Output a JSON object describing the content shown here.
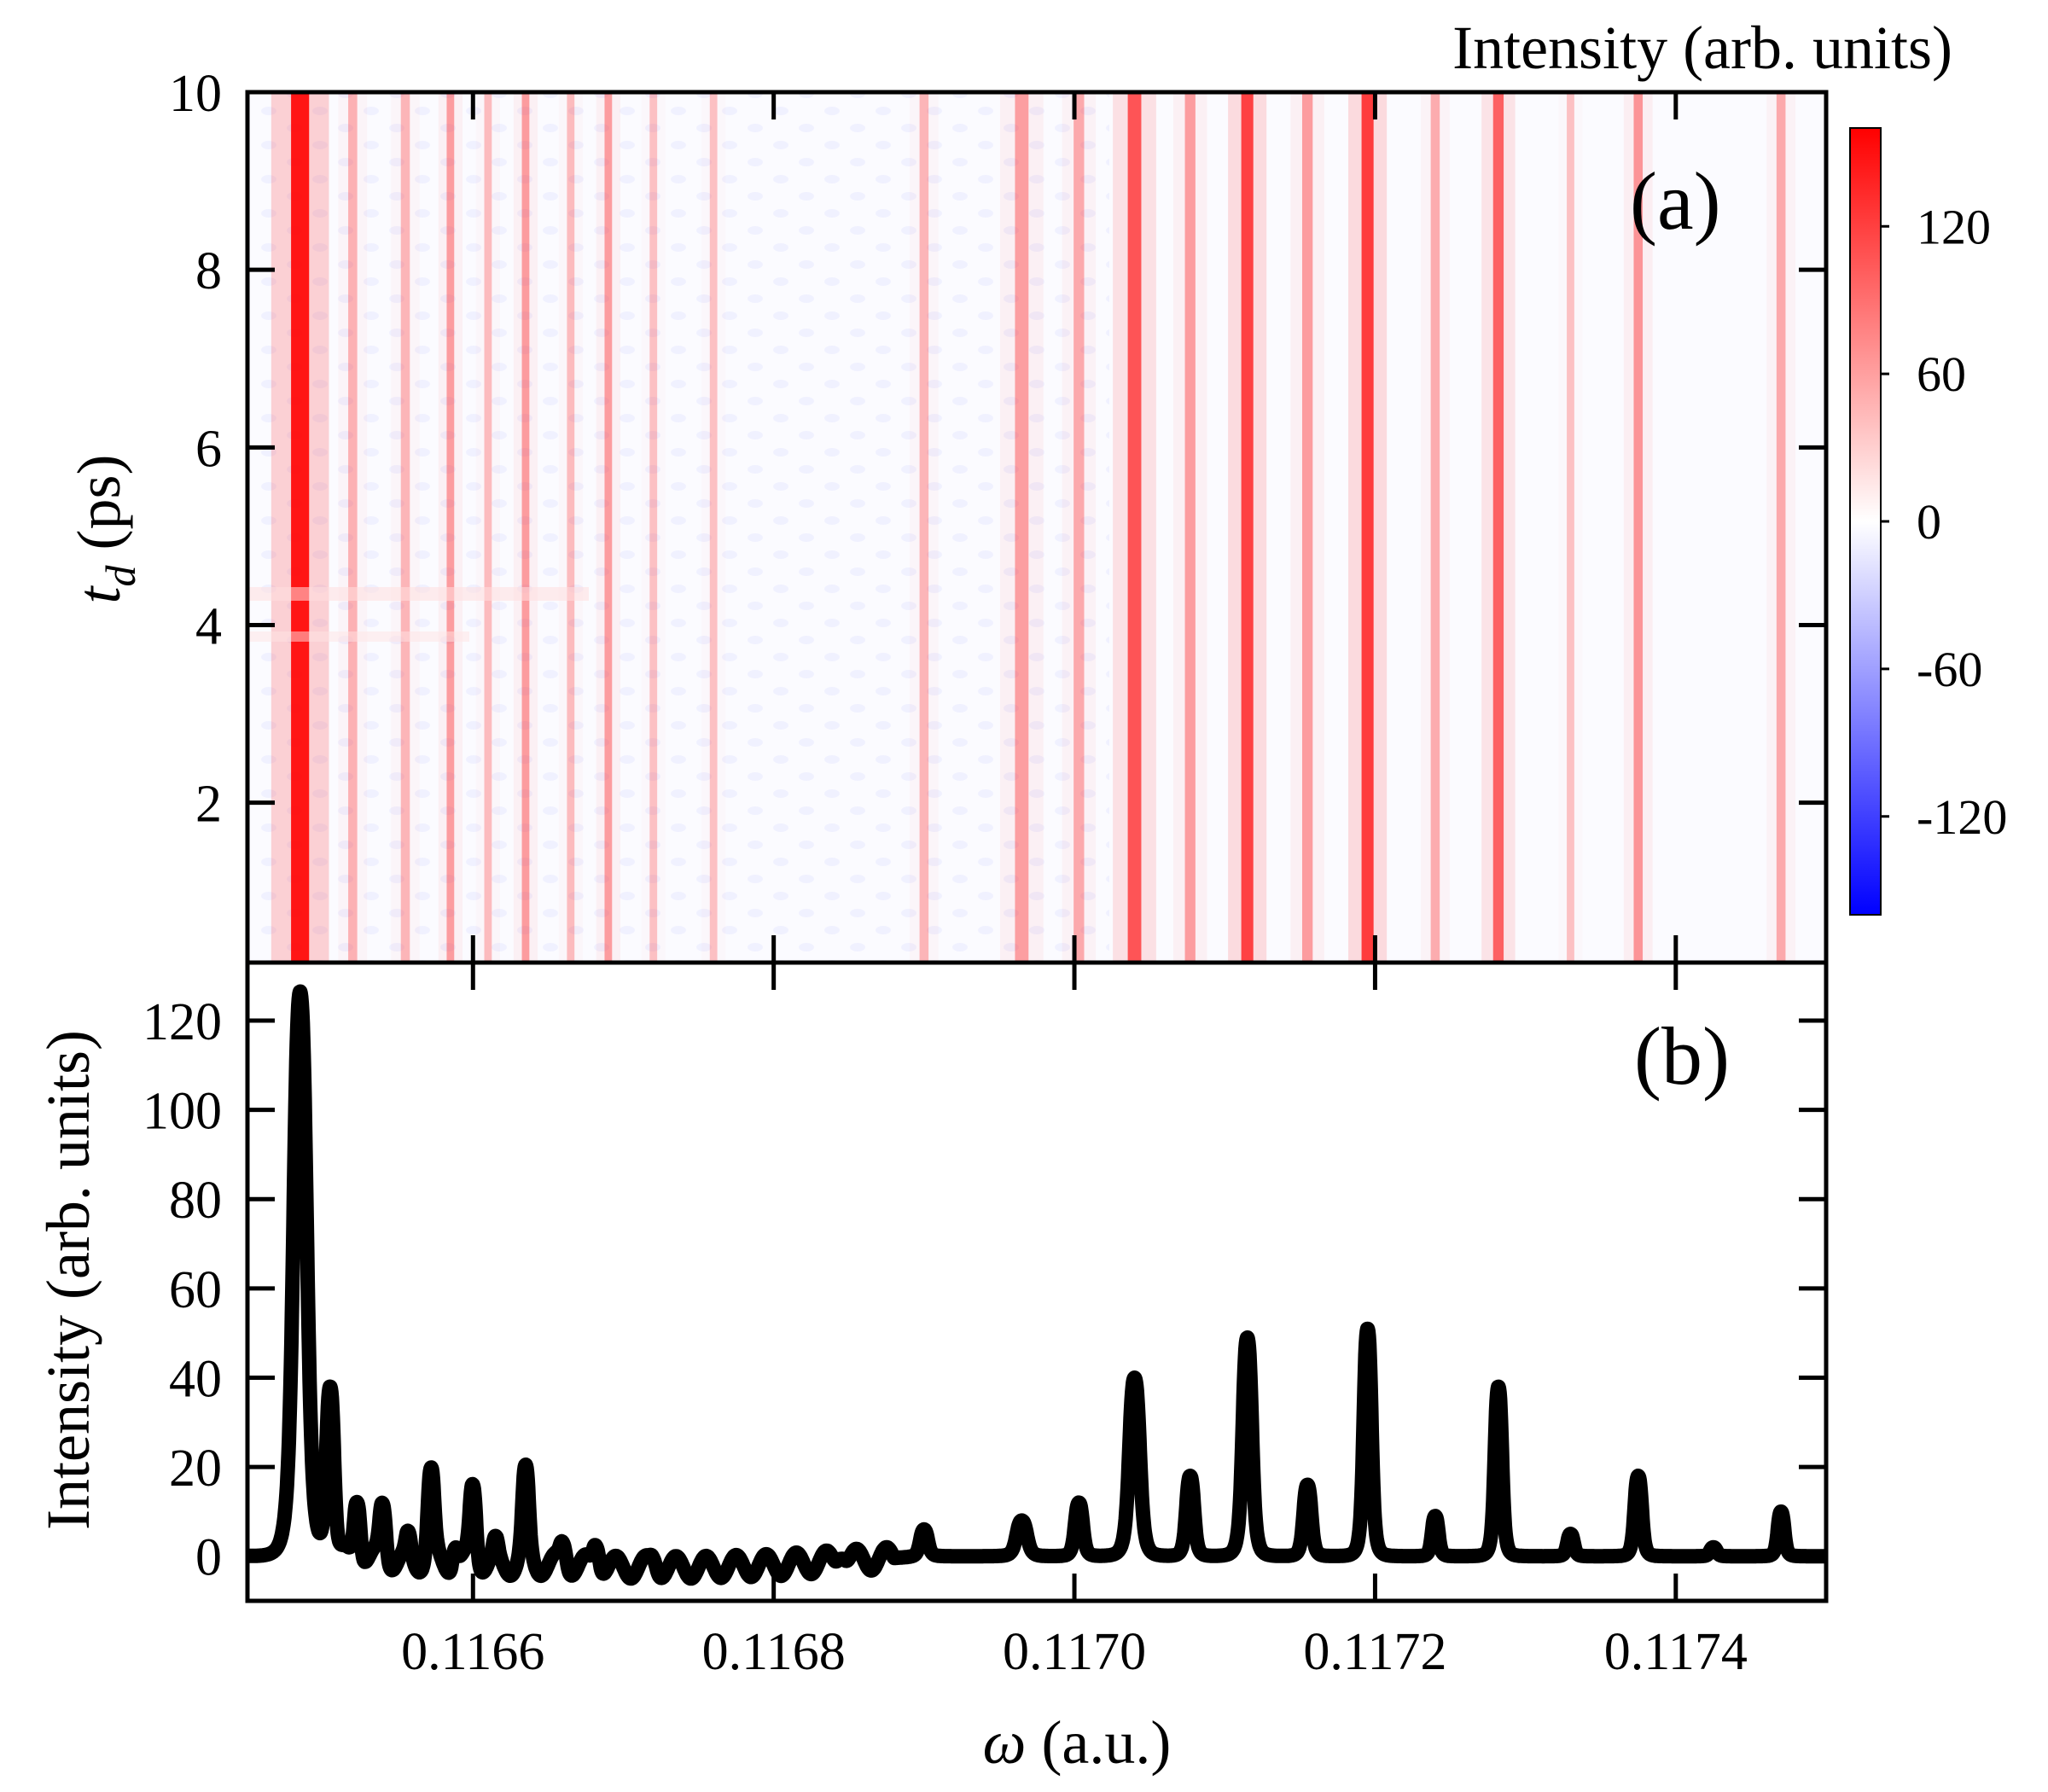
{
  "chart_data": [
    {
      "id": "panel-a",
      "type": "heatmap",
      "panel_label": "(a)",
      "ylabel_symbol": "t",
      "ylabel_subscript": "d",
      "ylabel_unit": " (ps)",
      "xlim": [
        0.11645,
        0.1175
      ],
      "ylim": [
        0.2,
        10.0
      ],
      "y_ticks": [
        2,
        4,
        6,
        8,
        10
      ],
      "y_tick_labels": [
        "2",
        "4",
        "6",
        "8",
        "10"
      ],
      "x_ticks": [
        0.1166,
        0.1168,
        0.117,
        0.1172,
        0.1174
      ],
      "colorbar": {
        "title": "Intensity (arb. units)",
        "range": [
          -160,
          160
        ],
        "ticks": [
          120,
          60,
          0,
          -60,
          -120
        ],
        "tick_labels": [
          "120",
          "60",
          "0",
          "-60",
          "-120"
        ],
        "colors": {
          "high": "#ff0000",
          "mid": "#ffffff",
          "low": "#0000ff"
        }
      },
      "lines": [
        {
          "x": 0.116485,
          "level": 150,
          "width": 6e-06
        },
        {
          "x": 0.11652,
          "level": 25,
          "width": 3e-06
        },
        {
          "x": 0.116555,
          "level": 22,
          "width": 3e-06
        },
        {
          "x": 0.116585,
          "level": 40,
          "width": 2.5e-06
        },
        {
          "x": 0.11661,
          "level": 18,
          "width": 2.5e-06
        },
        {
          "x": 0.116635,
          "level": 40,
          "width": 2.5e-06
        },
        {
          "x": 0.116665,
          "level": 18,
          "width": 2.5e-06
        },
        {
          "x": 0.11669,
          "level": 40,
          "width": 2.5e-06
        },
        {
          "x": 0.11672,
          "level": 15,
          "width": 2.5e-06
        },
        {
          "x": 0.11676,
          "level": 15,
          "width": 2.5e-06
        },
        {
          "x": 0.1169,
          "level": 22,
          "width": 3e-06
        },
        {
          "x": 0.116965,
          "level": 38,
          "width": 4.5e-06
        },
        {
          "x": 0.117003,
          "level": 30,
          "width": 3.5e-06
        },
        {
          "x": 0.11704,
          "level": 95,
          "width": 4.5e-06
        },
        {
          "x": 0.117077,
          "level": 40,
          "width": 3.5e-06
        },
        {
          "x": 0.117115,
          "level": 110,
          "width": 4e-06
        },
        {
          "x": 0.117155,
          "level": 40,
          "width": 3.5e-06
        },
        {
          "x": 0.117195,
          "level": 115,
          "width": 4e-06
        },
        {
          "x": 0.11724,
          "level": 28,
          "width": 3e-06
        },
        {
          "x": 0.117282,
          "level": 85,
          "width": 3.5e-06
        },
        {
          "x": 0.11733,
          "level": 15,
          "width": 2.5e-06
        },
        {
          "x": 0.117375,
          "level": 45,
          "width": 3e-06
        },
        {
          "x": 0.11747,
          "level": 30,
          "width": 3e-06
        }
      ]
    },
    {
      "id": "panel-b",
      "type": "line",
      "panel_label": "(b)",
      "xlabel_symbol": "ω",
      "xlabel_unit": " (a.u.)",
      "ylabel": "Intensity (arb. units)",
      "xlim": [
        0.11645,
        0.1175
      ],
      "ylim": [
        -10,
        133
      ],
      "x_ticks": [
        0.1166,
        0.1168,
        0.117,
        0.1172,
        0.1174
      ],
      "x_tick_labels": [
        "0.1166",
        "0.1168",
        "0.1170",
        "0.1172",
        "0.1174"
      ],
      "y_ticks": [
        0,
        20,
        40,
        60,
        80,
        100,
        120
      ],
      "y_tick_labels": [
        "0",
        "20",
        "40",
        "60",
        "80",
        "100",
        "120"
      ],
      "baseline": [
        {
          "x": 0.11645,
          "y": 0
        },
        {
          "x": 0.11652,
          "y": -1
        },
        {
          "x": 0.1166,
          "y": -2
        },
        {
          "x": 0.11665,
          "y": -2
        },
        {
          "x": 0.1167,
          "y": -2.5
        },
        {
          "x": 0.11675,
          "y": -2.5
        },
        {
          "x": 0.1168,
          "y": -2
        },
        {
          "x": 0.11685,
          "y": -1
        },
        {
          "x": 0.1169,
          "y": 0
        },
        {
          "x": 0.1175,
          "y": 0
        }
      ],
      "ripple": {
        "from": 0.11651,
        "to": 0.11688,
        "amplitude": 2.5,
        "period": 2e-05
      },
      "peaks": [
        {
          "x": 0.116485,
          "height": 127,
          "width": 5e-06
        },
        {
          "x": 0.116505,
          "height": 38,
          "width": 3e-06
        },
        {
          "x": 0.116523,
          "height": 15,
          "width": 2.5e-06
        },
        {
          "x": 0.11654,
          "height": 13,
          "width": 2.5e-06
        },
        {
          "x": 0.116557,
          "height": 5,
          "width": 2e-06
        },
        {
          "x": 0.116572,
          "height": 20,
          "width": 2.5e-06
        },
        {
          "x": 0.116588,
          "height": 5,
          "width": 2e-06
        },
        {
          "x": 0.1166,
          "height": 18,
          "width": 2.5e-06
        },
        {
          "x": 0.116615,
          "height": 4,
          "width": 2e-06
        },
        {
          "x": 0.116635,
          "height": 20,
          "width": 2.5e-06
        },
        {
          "x": 0.11666,
          "height": 5,
          "width": 2.5e-06
        },
        {
          "x": 0.116682,
          "height": 6,
          "width": 2.5e-06
        },
        {
          "x": 0.11672,
          "height": 2,
          "width": 2.5e-06
        },
        {
          "x": 0.116845,
          "height": 3,
          "width": 3e-06
        },
        {
          "x": 0.1169,
          "height": 6,
          "width": 3e-06
        },
        {
          "x": 0.116965,
          "height": 8,
          "width": 4e-06
        },
        {
          "x": 0.117003,
          "height": 12,
          "width": 3e-06
        },
        {
          "x": 0.11704,
          "height": 40,
          "width": 4e-06
        },
        {
          "x": 0.117077,
          "height": 18,
          "width": 3e-06
        },
        {
          "x": 0.117115,
          "height": 49,
          "width": 3.5e-06
        },
        {
          "x": 0.117155,
          "height": 16,
          "width": 3e-06
        },
        {
          "x": 0.117195,
          "height": 51,
          "width": 3e-06
        },
        {
          "x": 0.11724,
          "height": 9,
          "width": 2.5e-06
        },
        {
          "x": 0.117282,
          "height": 38,
          "width": 2.8e-06
        },
        {
          "x": 0.11733,
          "height": 5,
          "width": 2.5e-06
        },
        {
          "x": 0.117375,
          "height": 18,
          "width": 2.8e-06
        },
        {
          "x": 0.117425,
          "height": 2,
          "width": 2.5e-06
        },
        {
          "x": 0.11747,
          "height": 10,
          "width": 2.5e-06
        }
      ]
    }
  ]
}
